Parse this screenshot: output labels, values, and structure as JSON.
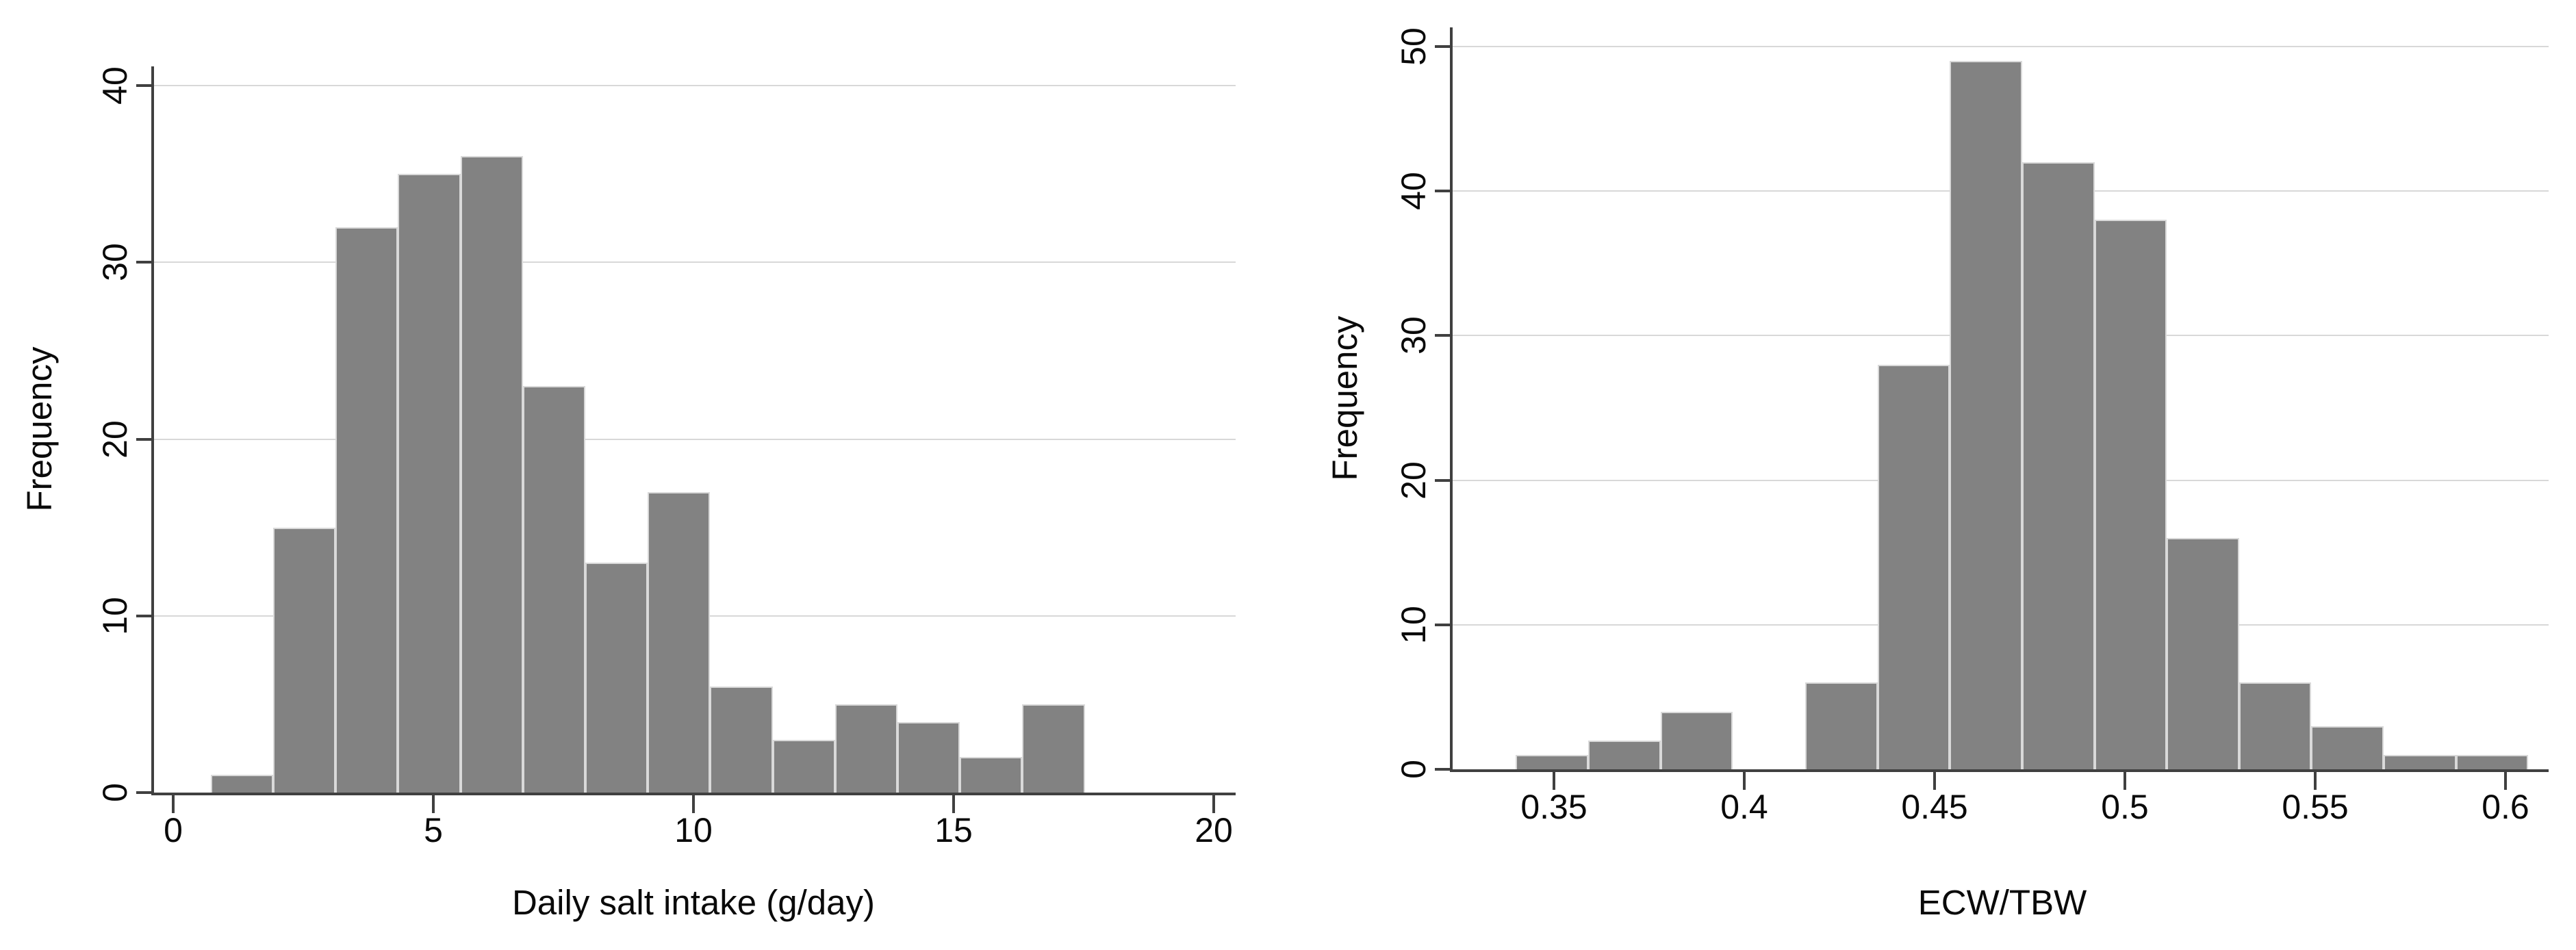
{
  "figure": {
    "background": "#ffffff",
    "description": "Two side-by-side frequency histograms"
  },
  "chart_data": [
    {
      "type": "bar",
      "subtype": "histogram",
      "title": "",
      "xlabel": "Daily salt intake (g/day)",
      "ylabel": "Frequency",
      "bin_start": 0.72,
      "bin_width": 1.2,
      "counts": [
        1,
        15,
        32,
        35,
        36,
        23,
        13,
        17,
        6,
        3,
        5,
        4,
        2,
        5
      ],
      "x_ticks": [
        0,
        5,
        10,
        15,
        20
      ],
      "x_tick_labels": [
        "0",
        "5",
        "10",
        "15",
        "20"
      ],
      "y_ticks": [
        0,
        10,
        20,
        30,
        40
      ],
      "y_tick_labels": [
        "0",
        "10",
        "20",
        "30",
        "40"
      ],
      "xlim": [
        -0.4,
        20.4
      ],
      "ylim": [
        0,
        41.1
      ],
      "grid": "horizontal",
      "legend": false,
      "y_tick_rotation": 90,
      "bar_color": "#828282",
      "bar_outline_color": "#d9d9d9",
      "gridline_color": "#d8d8d8",
      "axis_color": "#404040",
      "text_color": "#0a0a0a"
    },
    {
      "type": "bar",
      "subtype": "histogram",
      "title": "",
      "xlabel": "ECW/TBW",
      "ylabel": "Frequency",
      "bin_start": 0.34,
      "bin_width": 0.019,
      "counts": [
        1,
        2,
        4,
        0,
        6,
        28,
        49,
        42,
        38,
        16,
        6,
        3,
        1,
        1
      ],
      "x_ticks": [
        0.35,
        0.4,
        0.45,
        0.5,
        0.55,
        0.6
      ],
      "x_tick_labels": [
        "0.35",
        "0.4",
        "0.45",
        "0.5",
        "0.55",
        "0.6"
      ],
      "y_ticks": [
        0,
        10,
        20,
        30,
        40,
        50
      ],
      "y_tick_labels": [
        "0",
        "10",
        "20",
        "30",
        "40",
        "50"
      ],
      "xlim": [
        0.323,
        0.611
      ],
      "ylim": [
        0,
        51.3
      ],
      "grid": "horizontal",
      "legend": false,
      "y_tick_rotation": 90,
      "bar_color": "#828282",
      "bar_outline_color": "#d9d9d9",
      "gridline_color": "#d8d8d8",
      "axis_color": "#404040",
      "text_color": "#0a0a0a"
    }
  ]
}
